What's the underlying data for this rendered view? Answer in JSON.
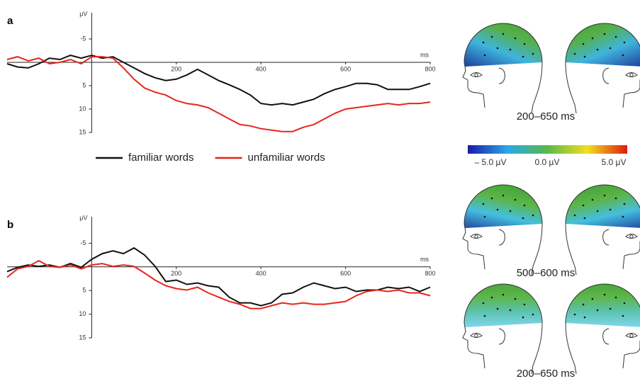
{
  "chart_data": [
    {
      "type": "line",
      "panel_label": "a",
      "xlabel": "ms",
      "ylabel": "µV",
      "y_inverted": true,
      "legend": "bottom",
      "x": [
        -200,
        -175,
        -150,
        -125,
        -100,
        -75,
        -50,
        -25,
        0,
        25,
        50,
        75,
        100,
        125,
        150,
        175,
        200,
        225,
        250,
        275,
        300,
        325,
        350,
        375,
        400,
        425,
        450,
        475,
        500,
        525,
        550,
        575,
        600,
        625,
        650,
        675,
        700,
        725,
        750,
        775,
        800
      ],
      "xlim": [
        -200,
        800
      ],
      "xticks": [
        200,
        400,
        600,
        800
      ],
      "ylim": [
        -10,
        15
      ],
      "yticks": [
        -5,
        5,
        10,
        15
      ],
      "series": [
        {
          "name": "familiar words",
          "color": "#111111",
          "values": [
            0.3,
            1,
            1.2,
            0.3,
            -0.9,
            -0.6,
            -1.5,
            -0.9,
            -1.5,
            -0.9,
            -1.2,
            0,
            1.2,
            2.4,
            3.3,
            3.9,
            3.6,
            2.7,
            1.5,
            2.7,
            3.9,
            4.8,
            5.8,
            7,
            8.8,
            9.1,
            8.8,
            9.1,
            8.5,
            7.9,
            6.7,
            5.8,
            5.2,
            4.5,
            4.5,
            4.8,
            5.8,
            5.8,
            5.8,
            5.2,
            4.5
          ]
        },
        {
          "name": "unfamiliar words",
          "color": "#e8251a",
          "values": [
            -0.6,
            -1.2,
            -0.3,
            -0.9,
            0.3,
            0,
            -0.6,
            0.3,
            -1.2,
            -1.2,
            -0.9,
            1.2,
            3.6,
            5.5,
            6.4,
            7,
            8.2,
            8.8,
            9.1,
            9.7,
            10.9,
            12.1,
            13.3,
            13.6,
            14.2,
            14.5,
            14.8,
            14.8,
            13.9,
            13.3,
            12.1,
            10.9,
            10,
            9.7,
            9.4,
            9.1,
            8.8,
            9.1,
            8.8,
            8.8,
            8.5
          ]
        }
      ]
    },
    {
      "type": "line",
      "panel_label": "b",
      "xlabel": "ms",
      "ylabel": "µV",
      "y_inverted": true,
      "x": [
        -200,
        -175,
        -150,
        -125,
        -100,
        -75,
        -50,
        -25,
        0,
        25,
        50,
        75,
        100,
        125,
        150,
        175,
        200,
        225,
        250,
        275,
        300,
        325,
        350,
        375,
        400,
        425,
        450,
        475,
        500,
        525,
        550,
        575,
        600,
        625,
        650,
        675,
        700,
        725,
        750,
        775,
        800
      ],
      "xlim": [
        -200,
        800
      ],
      "xticks": [
        200,
        400,
        600,
        800
      ],
      "ylim": [
        -10,
        15
      ],
      "yticks": [
        -5,
        5,
        10,
        15
      ],
      "series": [
        {
          "color": "#111111",
          "values": [
            1,
            0.1,
            -0.4,
            -0.1,
            -0.4,
            0.1,
            -0.7,
            0.1,
            -1.6,
            -2.8,
            -3.4,
            -2.8,
            -4,
            -2.5,
            -0.1,
            3.1,
            2.8,
            3.7,
            3.4,
            4,
            4.3,
            6.4,
            7.6,
            7.6,
            8.2,
            7.6,
            5.8,
            5.5,
            4.3,
            3.4,
            4,
            4.6,
            4.3,
            5.2,
            4.9,
            4.9,
            4.3,
            4.6,
            4.3,
            5.2,
            4.3
          ]
        },
        {
          "color": "#e8251a",
          "values": [
            2.2,
            0.4,
            -0.1,
            -1.3,
            -0.1,
            0.1,
            -0.4,
            0.4,
            -0.4,
            -0.7,
            -0.1,
            -0.4,
            -0.1,
            1.3,
            2.8,
            4,
            4.6,
            4.9,
            4.3,
            5.5,
            6.4,
            7.3,
            7.9,
            8.8,
            8.8,
            8.2,
            7.6,
            7.9,
            7.6,
            7.9,
            7.9,
            7.6,
            7.3,
            6.1,
            5.2,
            4.9,
            5.2,
            4.9,
            5.5,
            5.5,
            6.1
          ]
        }
      ]
    }
  ],
  "topomaps": {
    "labels": [
      "200–650 ms",
      "500–600 ms",
      "200–650 ms"
    ],
    "colorbar_labels": [
      "– 5.0 µV",
      "0.0 µV",
      "5.0 µV"
    ]
  }
}
